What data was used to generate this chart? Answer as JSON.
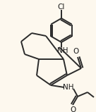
{
  "bg_color": "#fdf8ee",
  "line_color": "#2a2a2a",
  "text_color": "#1a1a1a",
  "lw": 1.4,
  "figsize": [
    1.36,
    1.59
  ],
  "dpi": 100,
  "xlim": [
    0,
    136
  ],
  "ylim": [
    0,
    159
  ]
}
